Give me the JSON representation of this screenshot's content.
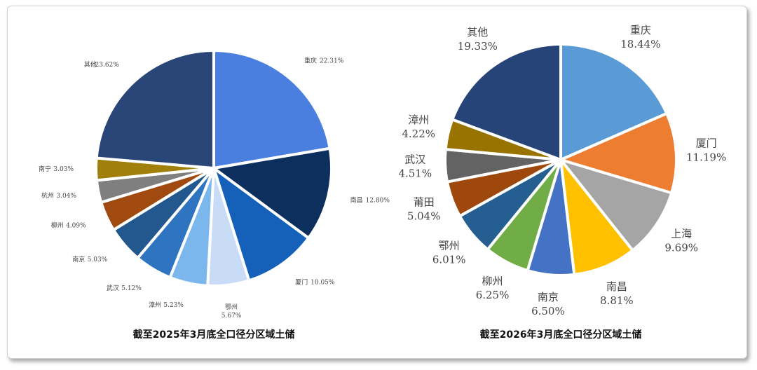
{
  "chart_data": [
    {
      "type": "pie",
      "title": "截至2025年3月底全口径分区域土储",
      "categories": [
        "重庆",
        "南昌",
        "厦门",
        "鄂州",
        "漳州",
        "武汉",
        "南京",
        "柳州",
        "杭州",
        "南宁",
        "其他"
      ],
      "values": [
        22.31,
        12.8,
        10.05,
        5.67,
        5.23,
        5.12,
        5.03,
        4.09,
        3.04,
        3.03,
        23.62
      ],
      "value_labels": [
        "22.31%",
        "12.80%",
        "10.05%",
        "5.67%",
        "5.23%",
        "5.12%",
        "5.03%",
        "4.09%",
        "3.04%",
        "3.03%",
        "23.62%"
      ],
      "colors": [
        "#4a7fe0",
        "#0d2f5e",
        "#1560b8",
        "#c9dcf7",
        "#7bb6ec",
        "#2f74c0",
        "#23588f",
        "#a04a10",
        "#7f7f7f",
        "#a0800a",
        "#2a4577"
      ]
    },
    {
      "type": "pie",
      "title": "截至2026年3月底全口径分区域土储",
      "categories": [
        "重庆",
        "厦门",
        "上海",
        "南昌",
        "南京",
        "柳州",
        "鄂州",
        "莆田",
        "武汉",
        "漳州",
        "其他"
      ],
      "values": [
        18.44,
        11.19,
        9.69,
        8.81,
        6.5,
        6.25,
        6.01,
        5.04,
        4.51,
        4.22,
        19.33
      ],
      "value_labels": [
        "18.44%",
        "11.19%",
        "9.69%",
        "8.81%",
        "6.50%",
        "6.25%",
        "6.01%",
        "5.04%",
        "4.51%",
        "4.22%",
        "19.33%"
      ],
      "colors": [
        "#5b9bd5",
        "#ed7d31",
        "#a5a5a5",
        "#ffc000",
        "#4472c4",
        "#70ad47",
        "#255e91",
        "#9e480e",
        "#636363",
        "#997300",
        "#264478"
      ]
    }
  ]
}
